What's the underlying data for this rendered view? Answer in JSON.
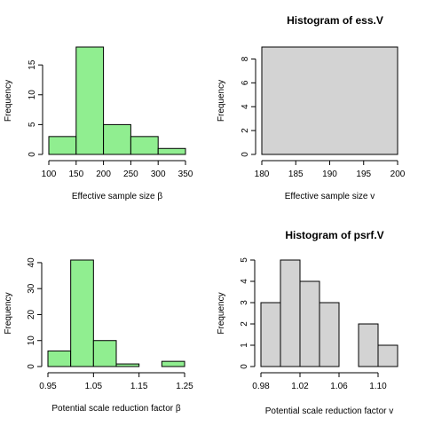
{
  "chart_data": [
    {
      "type": "bar",
      "title": "",
      "xlabel": "Effective sample size β",
      "ylabel": "Frequency",
      "fill": "#90ee90",
      "bin_edges": [
        100,
        150,
        200,
        250,
        300,
        350
      ],
      "values": [
        3,
        18,
        5,
        3,
        1
      ],
      "xlim": [
        100,
        350
      ],
      "ylim": [
        0,
        18
      ],
      "xticks": [
        100,
        150,
        200,
        250,
        300,
        350
      ],
      "xtick_labels": [
        "100",
        "150",
        "200",
        "250",
        "300",
        "350"
      ],
      "yticks": [
        0,
        5,
        10,
        15
      ],
      "ytick_labels": [
        "0",
        "5",
        "10",
        "15"
      ]
    },
    {
      "type": "bar",
      "title": "Histogram of ess.V",
      "xlabel": "Effective sample size v",
      "ylabel": "Frequency",
      "fill": "#d3d3d3",
      "bin_edges": [
        180,
        200
      ],
      "values": [
        9
      ],
      "xlim": [
        180,
        200
      ],
      "ylim": [
        0,
        9
      ],
      "xticks": [
        180,
        185,
        190,
        195,
        200
      ],
      "xtick_labels": [
        "180",
        "185",
        "190",
        "195",
        "200"
      ],
      "yticks": [
        0,
        2,
        4,
        6,
        8
      ],
      "ytick_labels": [
        "0",
        "2",
        "4",
        "6",
        "8"
      ]
    },
    {
      "type": "bar",
      "title": "",
      "xlabel": "Potential scale reduction factor β",
      "ylabel": "Frequency",
      "fill": "#90ee90",
      "bin_edges": [
        0.95,
        1.0,
        1.05,
        1.1,
        1.15,
        1.2,
        1.25
      ],
      "values": [
        6,
        41,
        10,
        1,
        0,
        2
      ],
      "xlim": [
        0.95,
        1.25
      ],
      "ylim": [
        0,
        41
      ],
      "xticks": [
        0.95,
        1.05,
        1.15,
        1.25
      ],
      "xtick_labels": [
        "0.95",
        "1.05",
        "1.15",
        "1.25"
      ],
      "yticks": [
        0,
        10,
        20,
        30,
        40
      ],
      "ytick_labels": [
        "0",
        "10",
        "20",
        "30",
        "40"
      ]
    },
    {
      "type": "bar",
      "title": "Histogram of psrf.V",
      "xlabel": "Potential scale reduction factor v",
      "ylabel": "Frequency",
      "fill": "#d3d3d3",
      "bin_edges": [
        0.98,
        1.0,
        1.02,
        1.04,
        1.06,
        1.08,
        1.1,
        1.12
      ],
      "values": [
        3,
        5,
        4,
        3,
        0,
        2,
        1
      ],
      "xlim": [
        0.98,
        1.12
      ],
      "ylim": [
        0,
        5
      ],
      "xticks": [
        0.98,
        1.02,
        1.06,
        1.1
      ],
      "xtick_labels": [
        "0.98",
        "1.02",
        "1.06",
        "1.10"
      ],
      "yticks": [
        0,
        1,
        2,
        3,
        4,
        5
      ],
      "ytick_labels": [
        "0",
        "1",
        "2",
        "3",
        "4",
        "5"
      ]
    }
  ]
}
